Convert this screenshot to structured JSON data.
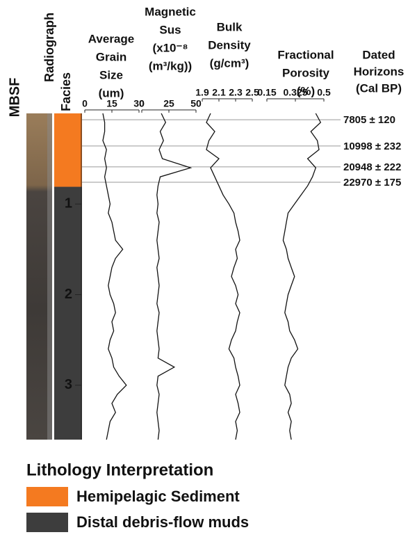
{
  "chart_data": {
    "type": "well-log",
    "depth_label": "MBSF",
    "ylim": [
      0,
      3.6
    ],
    "yticks": [
      1,
      2,
      3
    ],
    "radiograph_label": "Radiograph",
    "facies_label": "Facies",
    "depths": [
      0,
      0.1,
      0.2,
      0.3,
      0.4,
      0.5,
      0.6,
      0.7,
      0.8,
      0.9,
      1.0,
      1.1,
      1.2,
      1.3,
      1.4,
      1.5,
      1.6,
      1.7,
      1.8,
      1.9,
      2.0,
      2.1,
      2.2,
      2.3,
      2.4,
      2.5,
      2.6,
      2.7,
      2.8,
      2.9,
      3.0,
      3.1,
      3.2,
      3.3,
      3.4,
      3.5,
      3.6
    ],
    "panels": [
      {
        "type": "line",
        "title_lines": [
          "Average",
          "Grain",
          "Size",
          "(um)"
        ],
        "xlim": [
          0,
          30
        ],
        "xticks": [
          0,
          15,
          30
        ],
        "values": [
          10,
          11,
          11,
          10,
          12,
          11,
          12,
          11,
          12,
          13,
          14,
          13,
          15,
          16,
          17,
          21,
          17,
          15,
          14,
          13,
          14,
          16,
          17,
          15,
          16,
          14,
          13,
          15,
          16,
          19,
          23,
          18,
          15,
          17,
          14,
          13,
          12
        ]
      },
      {
        "type": "line",
        "title_lines": [
          "Magnetic",
          "Sus",
          "(x10⁻⁸",
          "(m³/kg))"
        ],
        "xlim": [
          0,
          50
        ],
        "xticks": [
          0,
          25,
          50
        ],
        "values": [
          18,
          22,
          17,
          20,
          16,
          19,
          45,
          17,
          15,
          14,
          15,
          14,
          16,
          15,
          14,
          15,
          16,
          14,
          15,
          16,
          15,
          14,
          16,
          15,
          14,
          15,
          16,
          15,
          30,
          15,
          14,
          16,
          15,
          14,
          15,
          16,
          15
        ]
      },
      {
        "type": "line",
        "title_lines": [
          "Bulk",
          "Density",
          "(g/cm³)"
        ],
        "xlim": [
          1.9,
          2.5
        ],
        "xticks": [
          1.9,
          2.1,
          2.3,
          2.5
        ],
        "values": [
          2.0,
          1.95,
          2.05,
          1.98,
          1.95,
          2.1,
          2.0,
          2.05,
          2.1,
          2.15,
          2.22,
          2.28,
          2.3,
          2.33,
          2.35,
          2.3,
          2.32,
          2.28,
          2.25,
          2.3,
          2.33,
          2.3,
          2.35,
          2.32,
          2.3,
          2.25,
          2.22,
          2.28,
          2.3,
          2.33,
          2.35,
          2.3,
          2.33,
          2.35,
          2.3,
          2.32,
          2.3
        ]
      },
      {
        "type": "line",
        "title_lines": [
          "Fractional",
          "Porosity",
          "(%)"
        ],
        "xlim": [
          0.15,
          0.5
        ],
        "xticks": [
          0.15,
          0.325,
          0.5
        ],
        "values": [
          0.45,
          0.48,
          0.42,
          0.46,
          0.47,
          0.4,
          0.45,
          0.43,
          0.4,
          0.36,
          0.32,
          0.28,
          0.27,
          0.26,
          0.25,
          0.27,
          0.28,
          0.3,
          0.32,
          0.3,
          0.28,
          0.27,
          0.26,
          0.28,
          0.29,
          0.32,
          0.34,
          0.3,
          0.28,
          0.27,
          0.26,
          0.29,
          0.3,
          0.28,
          0.3,
          0.29,
          0.3
        ]
      }
    ],
    "horizons": {
      "title_lines": [
        "Dated",
        "Horizons",
        "(Cal BP)"
      ],
      "depths": [
        0.07,
        0.36,
        0.59,
        0.76
      ],
      "labels": [
        "7805 ± 120",
        "10998 ± 232",
        "20948 ± 222",
        "22970 ± 175"
      ]
    },
    "legend_title": "Lithology Interpretation",
    "facies": [
      {
        "name": "Hemipelagic Sediment",
        "color": "#f47a20",
        "intervals": [
          [
            0,
            0.81
          ]
        ]
      },
      {
        "name": "Distal debris-flow muds",
        "color": "#3d3d3d",
        "intervals": [
          [
            0.81,
            3.6
          ]
        ]
      }
    ]
  }
}
